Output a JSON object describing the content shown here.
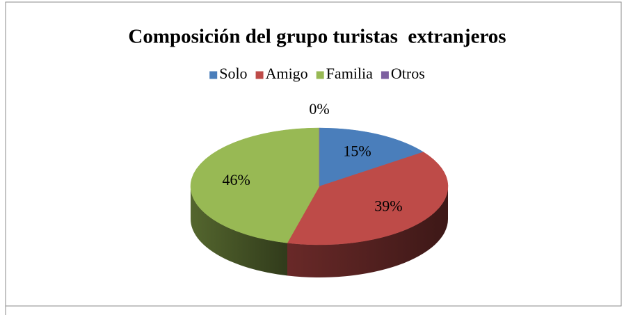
{
  "chart_data": {
    "type": "pie3d",
    "title": "Composición del grupo turistas  extranjeros",
    "categories": [
      "Solo",
      "Amigo",
      "Familia",
      "Otros"
    ],
    "values": [
      15,
      39,
      46,
      0
    ],
    "value_labels": [
      "15%",
      "39%",
      "46%",
      "0%"
    ],
    "colors": [
      "#4a7ebb",
      "#be4b48",
      "#98b954",
      "#7d60a0"
    ],
    "legend": "top"
  }
}
